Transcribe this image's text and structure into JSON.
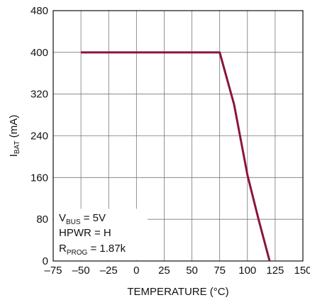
{
  "chart_data": {
    "type": "line",
    "xlabel": "TEMPERATURE (°C)",
    "ylabel": {
      "main": "I",
      "sub": "BAT",
      "rest": " (mA)"
    },
    "xlim": [
      -75,
      150
    ],
    "ylim": [
      0,
      480
    ],
    "x_ticks": [
      "–75",
      "–50",
      "–25",
      "0",
      "25",
      "50",
      "75",
      "100",
      "125",
      "150"
    ],
    "x_tick_values": [
      -75,
      -50,
      -25,
      0,
      25,
      50,
      75,
      100,
      125,
      150
    ],
    "y_ticks": [
      "0",
      "80",
      "160",
      "240",
      "320",
      "400",
      "480"
    ],
    "y_tick_values": [
      0,
      80,
      160,
      240,
      320,
      400,
      480
    ],
    "grid": true,
    "series": [
      {
        "color": "#8b1538",
        "x": [
          -50,
          75,
          88,
          100,
          110,
          120
        ],
        "y": [
          400,
          400,
          300,
          165,
          80,
          0
        ]
      }
    ],
    "annotation": {
      "line1": {
        "main": "V",
        "sub": "BUS",
        "rest": " = 5V"
      },
      "line2": "HPWR = H",
      "line3": {
        "main": "R",
        "sub": "PROG",
        "rest": " = 1.87k"
      }
    }
  }
}
